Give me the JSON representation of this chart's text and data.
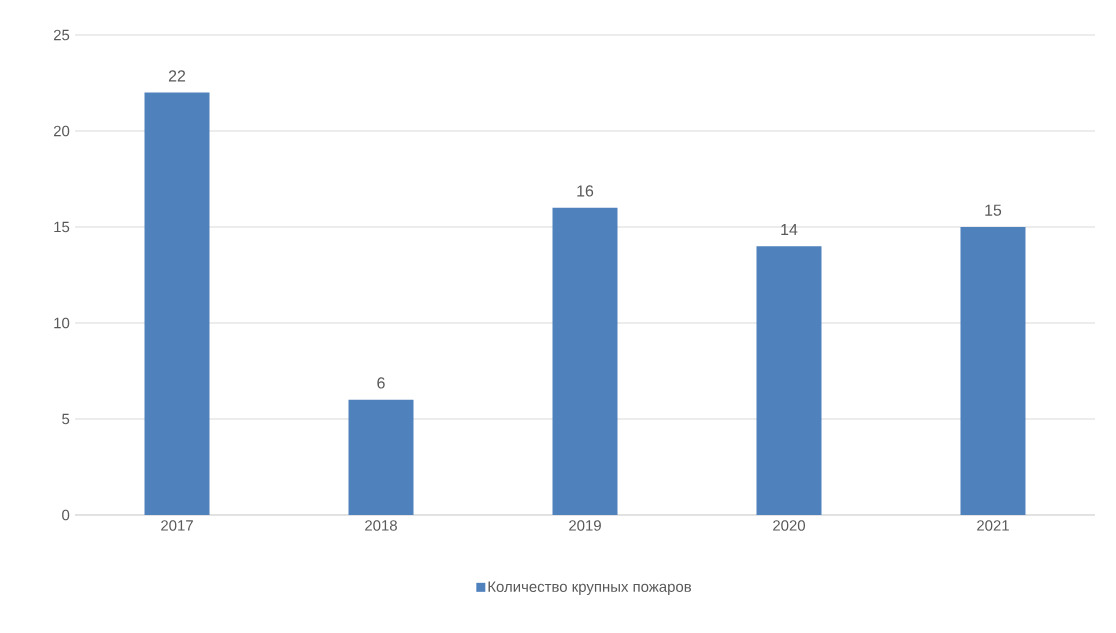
{
  "chart_data": {
    "type": "bar",
    "categories": [
      "2017",
      "2018",
      "2019",
      "2020",
      "2021"
    ],
    "series": [
      {
        "name": "Количество крупных пожаров",
        "color": "#4f81bd",
        "values": [
          22,
          6,
          16,
          14,
          15
        ]
      }
    ],
    "ylim": [
      0,
      25
    ],
    "yticks": [
      0,
      5,
      10,
      15,
      20,
      25
    ],
    "grid": "y",
    "legend": "bottom",
    "data_labels": true
  }
}
